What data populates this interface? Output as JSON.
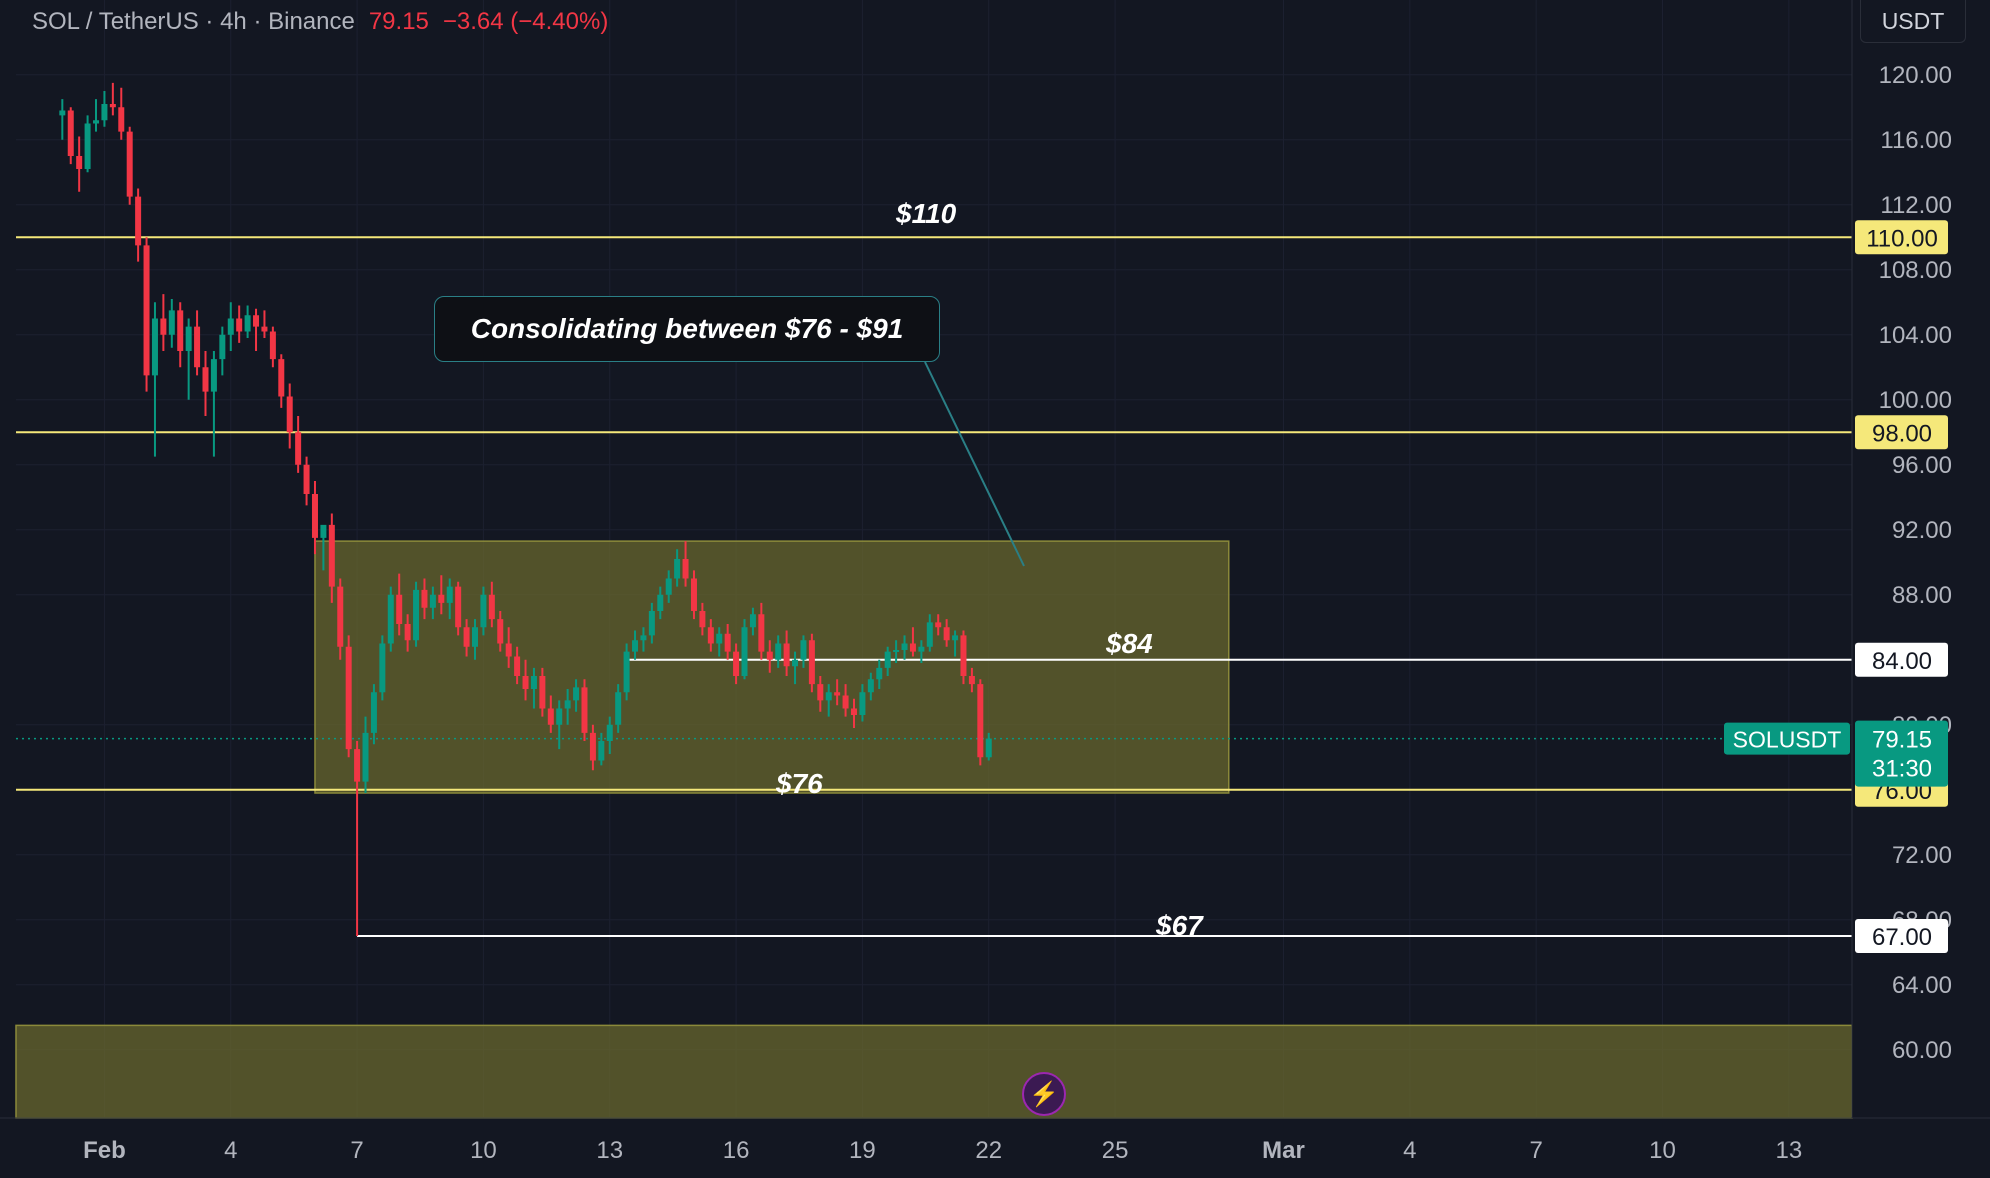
{
  "header": {
    "symbol": "SOL / TetherUS · 4h · Binance",
    "last_price": "79.15",
    "change": "−3.64 (−4.40%)"
  },
  "unit_label": "USDT",
  "annotations": {
    "callout": "Consolidating between $76 - $91",
    "level_110": "$110",
    "level_84": "$84",
    "level_76": "$76",
    "level_67": "$67"
  },
  "colors": {
    "background": "#131722",
    "up": "#089981",
    "down": "#f23645",
    "support_line": "#f5e87a",
    "white_line": "#ffffff",
    "zone_fill": "#6b6a2e"
  },
  "price_tag": {
    "label": "SOLUSDT",
    "price": "79.15",
    "countdown": "31:30"
  },
  "chart_data": {
    "type": "candlestick",
    "title": "",
    "y_axis": {
      "ticks": [
        "120.00",
        "116.00",
        "112.00",
        "108.00",
        "104.00",
        "100.00",
        "96.00",
        "92.00",
        "88.00",
        "80.00",
        "72.00",
        "68.00",
        "64.00",
        "60.00"
      ],
      "range": [
        55.8,
        124.6
      ]
    },
    "x_axis": {
      "labels": [
        {
          "text": "Feb",
          "day": 1
        },
        {
          "text": "4",
          "day": 4
        },
        {
          "text": "7",
          "day": 7
        },
        {
          "text": "10",
          "day": 10
        },
        {
          "text": "13",
          "day": 13
        },
        {
          "text": "16",
          "day": 16
        },
        {
          "text": "19",
          "day": 19
        },
        {
          "text": "22",
          "day": 22
        },
        {
          "text": "25",
          "day": 25
        },
        {
          "text": "Mar",
          "day": 29
        },
        {
          "text": "4",
          "day": 32
        },
        {
          "text": "7",
          "day": 35
        },
        {
          "text": "10",
          "day": 38
        },
        {
          "text": "13",
          "day": 41
        }
      ],
      "range_days": [
        -1.1,
        42.5
      ]
    },
    "horizontal_levels": [
      {
        "value": 110,
        "label": "110.00",
        "color": "yellow"
      },
      {
        "value": 98,
        "label": "98.00",
        "color": "yellow"
      },
      {
        "value": 84,
        "label": "84.00",
        "color": "white"
      },
      {
        "value": 76,
        "label": "76.00",
        "color": "yellow"
      },
      {
        "value": 67,
        "label": "67.00",
        "color": "white"
      }
    ],
    "zones": [
      {
        "from_day": 6.0,
        "to_day": 27.7,
        "low": 75.8,
        "high": 91.3
      },
      {
        "from_day": -1.1,
        "to_day": 42.5,
        "low": 55.8,
        "high": 61.5
      }
    ],
    "close_line": 79.15,
    "candles": [
      [
        0.0,
        117.5,
        118.5,
        116,
        117.8
      ],
      [
        0.2,
        117.8,
        118,
        114.5,
        115
      ],
      [
        0.4,
        115,
        116.2,
        112.8,
        114.2
      ],
      [
        0.6,
        114.2,
        117.5,
        114,
        117
      ],
      [
        0.8,
        117,
        118.5,
        116.5,
        117.2
      ],
      [
        1.0,
        117.2,
        119,
        116.8,
        118.2
      ],
      [
        1.2,
        118.2,
        119.5,
        117.5,
        118
      ],
      [
        1.4,
        118,
        119.2,
        116,
        116.5
      ],
      [
        1.6,
        116.5,
        116.8,
        112,
        112.5
      ],
      [
        1.8,
        112.5,
        113,
        108.5,
        109.5
      ],
      [
        2.0,
        109.5,
        110,
        100.5,
        101.5
      ],
      [
        2.2,
        101.5,
        106,
        96.5,
        105
      ],
      [
        2.4,
        105,
        106.5,
        103,
        104
      ],
      [
        2.6,
        104,
        106.2,
        103.2,
        105.5
      ],
      [
        2.8,
        105.5,
        106,
        102,
        103
      ],
      [
        3.0,
        103,
        105,
        100,
        104.5
      ],
      [
        3.2,
        104.5,
        105.5,
        101.5,
        102
      ],
      [
        3.4,
        102,
        103,
        99,
        100.5
      ],
      [
        3.6,
        100.5,
        103,
        96.5,
        102.5
      ],
      [
        3.8,
        102.5,
        104.5,
        101.5,
        104
      ],
      [
        4.0,
        104,
        106,
        103,
        105
      ],
      [
        4.2,
        105,
        105.8,
        103.5,
        104.2
      ],
      [
        4.4,
        104.2,
        105.8,
        103.8,
        105.2
      ],
      [
        4.6,
        105.2,
        105.6,
        103,
        104.5
      ],
      [
        4.8,
        104.5,
        105.5,
        103.8,
        104.2
      ],
      [
        5.0,
        104.2,
        104.5,
        102,
        102.5
      ],
      [
        5.2,
        102.5,
        102.8,
        99.5,
        100.2
      ],
      [
        5.4,
        100.2,
        101,
        97,
        98
      ],
      [
        5.6,
        98,
        99,
        95.5,
        96
      ],
      [
        5.8,
        96,
        96.5,
        93.5,
        94.2
      ],
      [
        6.0,
        94.2,
        95,
        90.5,
        91.5
      ],
      [
        6.2,
        91.5,
        92,
        89.5,
        92.3
      ],
      [
        6.4,
        92.3,
        93,
        87.5,
        88.5
      ],
      [
        6.6,
        88.5,
        89,
        84,
        84.8
      ],
      [
        6.8,
        84.8,
        85.5,
        78,
        78.5
      ],
      [
        7.0,
        78.5,
        79,
        67,
        76.5
      ],
      [
        7.2,
        76.5,
        80.5,
        75.8,
        79.5
      ],
      [
        7.4,
        79.5,
        82.5,
        78.8,
        82
      ],
      [
        7.6,
        82,
        85.5,
        81.5,
        85
      ],
      [
        7.8,
        85,
        88.5,
        84.5,
        88
      ],
      [
        8.0,
        88,
        89.3,
        85.5,
        86.2
      ],
      [
        8.2,
        86.2,
        86.8,
        84.5,
        85.2
      ],
      [
        8.4,
        85.2,
        88.8,
        84.8,
        88.3
      ],
      [
        8.6,
        88.3,
        89,
        86.5,
        87.2
      ],
      [
        8.8,
        87.2,
        88.5,
        86.5,
        88
      ],
      [
        9.0,
        88,
        89.2,
        86.8,
        87.5
      ],
      [
        9.2,
        87.5,
        89,
        86.5,
        88.5
      ],
      [
        9.4,
        88.5,
        88.8,
        85.5,
        86
      ],
      [
        9.6,
        86,
        86.5,
        84.2,
        84.8
      ],
      [
        9.8,
        84.8,
        86.5,
        84,
        86
      ],
      [
        10.0,
        86,
        88.5,
        85.5,
        88
      ],
      [
        10.2,
        88,
        88.8,
        86,
        86.5
      ],
      [
        10.4,
        86.5,
        87,
        84.5,
        85
      ],
      [
        10.6,
        85,
        86,
        83.5,
        84.2
      ],
      [
        10.8,
        84.2,
        84.8,
        82.5,
        83
      ],
      [
        11.0,
        83,
        84,
        81.5,
        82.2
      ],
      [
        11.2,
        82.2,
        83.5,
        81,
        83
      ],
      [
        11.4,
        83,
        83.5,
        80.5,
        81
      ],
      [
        11.6,
        81,
        81.8,
        79.5,
        80
      ],
      [
        11.8,
        80,
        81.5,
        78.5,
        81
      ],
      [
        12.0,
        81,
        82.2,
        80,
        81.5
      ],
      [
        12.2,
        81.5,
        82.8,
        80.8,
        82.3
      ],
      [
        12.4,
        82.3,
        82.8,
        79,
        79.5
      ],
      [
        12.6,
        79.5,
        80,
        77.2,
        77.8
      ],
      [
        12.8,
        77.8,
        79.5,
        77.5,
        79
      ],
      [
        13.0,
        79,
        80.5,
        78.2,
        80
      ],
      [
        13.2,
        80,
        82.5,
        79.5,
        82
      ],
      [
        13.4,
        82,
        85,
        81.5,
        84.5
      ],
      [
        13.6,
        84.5,
        85.8,
        84,
        85.2
      ],
      [
        13.8,
        85.2,
        86,
        84.5,
        85.5
      ],
      [
        14.0,
        85.5,
        87.5,
        85,
        87
      ],
      [
        14.2,
        87,
        88.5,
        86.5,
        88
      ],
      [
        14.4,
        88,
        89.5,
        87.5,
        89
      ],
      [
        14.6,
        89,
        90.8,
        88.5,
        90.2
      ],
      [
        14.8,
        90.2,
        91.3,
        88.5,
        89
      ],
      [
        15.0,
        89,
        89.5,
        86.5,
        87
      ],
      [
        15.2,
        87,
        87.5,
        85.5,
        86
      ],
      [
        15.4,
        86,
        86.5,
        84.5,
        85
      ],
      [
        15.6,
        85,
        86,
        84.2,
        85.6
      ],
      [
        15.8,
        85.6,
        86.2,
        84,
        84.5
      ],
      [
        16.0,
        84.5,
        85,
        82.5,
        83
      ],
      [
        16.2,
        83,
        86.5,
        82.8,
        86
      ],
      [
        16.4,
        86,
        87.2,
        85.5,
        86.8
      ],
      [
        16.6,
        86.8,
        87.5,
        84,
        84.5
      ],
      [
        16.8,
        84.5,
        85.2,
        83.2,
        84
      ],
      [
        17.0,
        84,
        85.5,
        83.5,
        85
      ],
      [
        17.2,
        85,
        85.8,
        83,
        83.6
      ],
      [
        17.4,
        83.6,
        84.5,
        82.5,
        84
      ],
      [
        17.6,
        84,
        85.5,
        83.5,
        85.2
      ],
      [
        17.8,
        85.2,
        85.6,
        82,
        82.5
      ],
      [
        18.0,
        82.5,
        83,
        80.8,
        81.5
      ],
      [
        18.2,
        81.5,
        82.5,
        80.5,
        82
      ],
      [
        18.4,
        82,
        82.8,
        81.2,
        81.8
      ],
      [
        18.6,
        81.8,
        82.5,
        80.5,
        81
      ],
      [
        18.8,
        81,
        81.6,
        79.8,
        80.6
      ],
      [
        19.0,
        80.6,
        82.5,
        80.2,
        82
      ],
      [
        19.2,
        82,
        83.2,
        81.5,
        82.8
      ],
      [
        19.4,
        82.8,
        84,
        82.2,
        83.5
      ],
      [
        19.6,
        83.5,
        84.8,
        83,
        84.5
      ],
      [
        19.8,
        84.5,
        85.2,
        83.8,
        84.6
      ],
      [
        20.0,
        84.6,
        85.5,
        84,
        85
      ],
      [
        20.2,
        85,
        86,
        84.2,
        84.5
      ],
      [
        20.4,
        84.5,
        85.2,
        83.8,
        84.8
      ],
      [
        20.6,
        84.8,
        86.8,
        84.5,
        86.3
      ],
      [
        20.8,
        86.3,
        86.8,
        85.5,
        86
      ],
      [
        21.0,
        86,
        86.5,
        84.8,
        85.2
      ],
      [
        21.2,
        85.2,
        85.8,
        84.2,
        85.5
      ],
      [
        21.4,
        85.5,
        85.8,
        82.5,
        83
      ],
      [
        21.6,
        83,
        83.5,
        82,
        82.5
      ],
      [
        21.8,
        82.5,
        82.8,
        77.5,
        78
      ],
      [
        22.0,
        78,
        79.5,
        77.8,
        79.15
      ]
    ]
  }
}
